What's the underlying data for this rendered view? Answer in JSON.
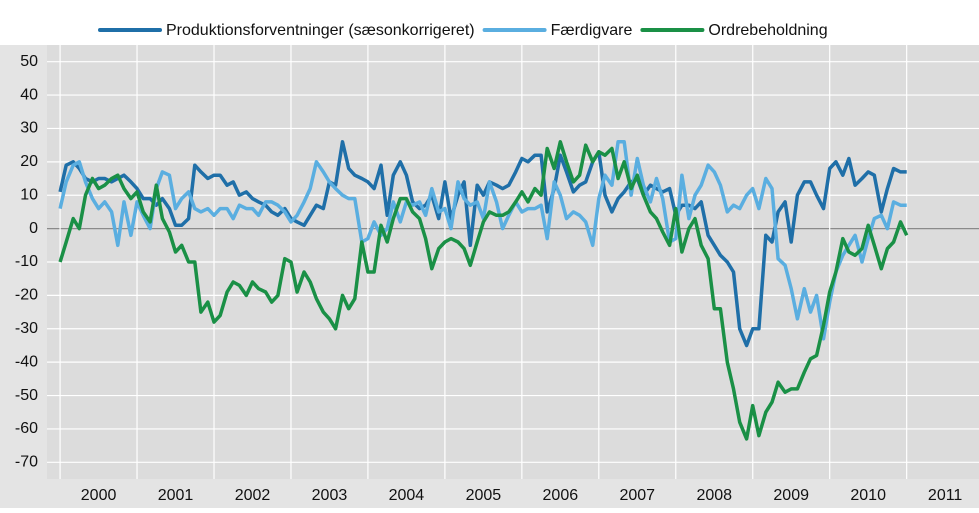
{
  "chart_data": {
    "type": "line",
    "x": [
      2000,
      2000.08,
      2000.17,
      2000.25,
      2000.33,
      2000.42,
      2000.5,
      2000.58,
      2000.67,
      2000.75,
      2000.83,
      2000.92,
      2001,
      2001.08,
      2001.17,
      2001.25,
      2001.33,
      2001.42,
      2001.5,
      2001.58,
      2001.67,
      2001.75,
      2001.83,
      2001.92,
      2002,
      2002.08,
      2002.17,
      2002.25,
      2002.33,
      2002.42,
      2002.5,
      2002.58,
      2002.67,
      2002.75,
      2002.83,
      2002.92,
      2003,
      2003.08,
      2003.17,
      2003.25,
      2003.33,
      2003.42,
      2003.5,
      2003.58,
      2003.67,
      2003.75,
      2003.83,
      2003.92,
      2004,
      2004.08,
      2004.17,
      2004.25,
      2004.33,
      2004.42,
      2004.5,
      2004.58,
      2004.67,
      2004.75,
      2004.83,
      2004.92,
      2005,
      2005.08,
      2005.17,
      2005.25,
      2005.33,
      2005.42,
      2005.5,
      2005.58,
      2005.67,
      2005.75,
      2005.83,
      2005.92,
      2006,
      2006.08,
      2006.17,
      2006.25,
      2006.33,
      2006.42,
      2006.5,
      2006.58,
      2006.67,
      2006.75,
      2006.83,
      2006.92,
      2007,
      2007.08,
      2007.17,
      2007.25,
      2007.33,
      2007.42,
      2007.5,
      2007.58,
      2007.67,
      2007.75,
      2007.83,
      2007.92,
      2008,
      2008.08,
      2008.17,
      2008.25,
      2008.33,
      2008.42,
      2008.5,
      2008.58,
      2008.67,
      2008.75,
      2008.83,
      2008.92,
      2009,
      2009.08,
      2009.17,
      2009.25,
      2009.33,
      2009.42,
      2009.5,
      2009.58,
      2009.67,
      2009.75,
      2009.83,
      2009.92,
      2010,
      2010.08,
      2010.17,
      2010.25,
      2010.33,
      2010.42,
      2010.5,
      2010.58,
      2010.67,
      2010.75,
      2010.83,
      2010.92,
      2011
    ],
    "series": [
      {
        "name": "Produktionsforventninger (sæsonkorrigeret)",
        "color": "#1f6fa8",
        "values": [
          11,
          19,
          20,
          18,
          15,
          14,
          15,
          15,
          14,
          15,
          16,
          14,
          12,
          9,
          9,
          7,
          9,
          6,
          1,
          1,
          3,
          19,
          17,
          15,
          16,
          16,
          13,
          14,
          10,
          11,
          9,
          8,
          7,
          5,
          4,
          6,
          3,
          2,
          1,
          4,
          7,
          6,
          14,
          13,
          26,
          18,
          16,
          15,
          14,
          12,
          19,
          4,
          16,
          20,
          16,
          8,
          6,
          7,
          10,
          3,
          14,
          3,
          10,
          14,
          -5,
          13,
          10,
          14,
          13,
          12,
          13,
          17,
          21,
          20,
          22,
          22,
          5,
          12,
          22,
          17,
          11,
          13,
          14,
          20,
          23,
          10,
          5,
          9,
          11,
          14,
          15,
          10,
          13,
          12,
          11,
          12,
          4,
          7,
          7,
          6,
          8,
          -2,
          -5,
          -8,
          -10,
          -13,
          -30,
          -35,
          -30,
          -30,
          -2,
          -4,
          5,
          8,
          -4,
          10,
          14,
          14,
          10,
          6,
          18,
          20,
          16,
          21,
          13,
          15,
          17,
          16,
          5,
          12,
          18,
          17,
          17
        ]
      },
      {
        "name": "Færdigvare",
        "color": "#5aaee0",
        "values": [
          6,
          14,
          19,
          20,
          14,
          9,
          6,
          8,
          5,
          -5,
          8,
          -2,
          8,
          4,
          0,
          12,
          17,
          16,
          6,
          9,
          11,
          6,
          5,
          6,
          4,
          6,
          6,
          3,
          7,
          6,
          6,
          4,
          8,
          8,
          7,
          5,
          2,
          4,
          8,
          12,
          20,
          17,
          14,
          12,
          10,
          9,
          9,
          -4,
          -3,
          2,
          -2,
          0,
          8,
          2,
          8,
          7,
          8,
          4,
          12,
          5,
          6,
          0,
          14,
          9,
          7,
          8,
          3,
          14,
          8,
          0,
          4,
          8,
          5,
          6,
          6,
          7,
          -3,
          14,
          10,
          3,
          5,
          4,
          2,
          -5,
          9,
          16,
          13,
          26,
          26,
          10,
          21,
          13,
          8,
          15,
          9,
          -4,
          -3,
          16,
          3,
          10,
          13,
          19,
          17,
          13,
          5,
          7,
          6,
          10,
          12,
          6,
          15,
          12,
          -9,
          -11,
          -18,
          -27,
          -18,
          -25,
          -20,
          -33,
          -22,
          -13,
          -8,
          -5,
          -2,
          -10,
          -3,
          3,
          4,
          0,
          8,
          7,
          7
        ]
      },
      {
        "name": "Ordrebeholdning",
        "color": "#1a9046",
        "values": [
          -10,
          -4,
          3,
          0,
          10,
          15,
          12,
          13,
          15,
          16,
          12,
          9,
          11,
          5,
          2,
          13,
          3,
          -1,
          -7,
          -5,
          -10,
          -10,
          -25,
          -22,
          -28,
          -26,
          -19,
          -16,
          -17,
          -20,
          -16,
          -18,
          -19,
          -22,
          -20,
          -9,
          -10,
          -19,
          -13,
          -16,
          -21,
          -25,
          -27,
          -30,
          -20,
          -24,
          -21,
          -4,
          -13,
          -13,
          1,
          -4,
          3,
          9,
          9,
          5,
          3,
          -3,
          -12,
          -6,
          -4,
          -3,
          -4,
          -6,
          -11,
          -4,
          2,
          5,
          4,
          4,
          5,
          8,
          11,
          8,
          12,
          10,
          24,
          18,
          26,
          20,
          14,
          16,
          25,
          20,
          23,
          22,
          24,
          15,
          20,
          12,
          16,
          10,
          5,
          3,
          -1,
          -5,
          6,
          -7,
          0,
          3,
          -5,
          -9,
          -24,
          -24,
          -40,
          -48,
          -58,
          -63,
          -53,
          -62,
          -55,
          -52,
          -46,
          -49,
          -48,
          -48,
          -43,
          -39,
          -38,
          -29,
          -19,
          -13,
          -3,
          -7,
          -8,
          -6,
          1,
          -5,
          -12,
          -6,
          -4,
          2,
          -2
        ]
      }
    ],
    "xlim": [
      1999.83,
      2011.94
    ],
    "xticks": [
      2000,
      2001,
      2002,
      2003,
      2004,
      2005,
      2006,
      2007,
      2008,
      2009,
      2010,
      2011
    ],
    "ylim": [
      -75,
      55
    ],
    "yticks": [
      50,
      40,
      30,
      20,
      10,
      0,
      -10,
      -20,
      -30,
      -40,
      -50,
      -60,
      -70
    ],
    "grid": true
  }
}
